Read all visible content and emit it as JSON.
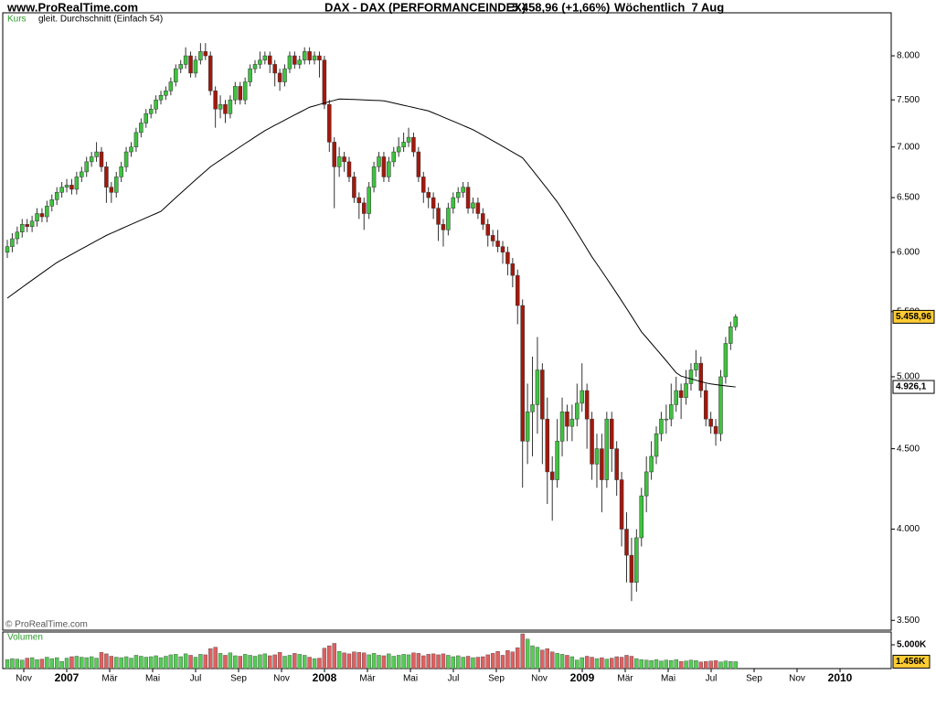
{
  "chart_data": {
    "type": "candlestick",
    "site": "www.ProRealTime.com",
    "title": "DAX - DAX (PERFORMANCEINDEX)",
    "quote": "5.458,96 (+1,66%)",
    "period": "Wöchentlich  7 Aug",
    "legend_label": "Kurs",
    "copyright": "© ProRealTime.com",
    "log_scale": true,
    "up_color": "#3fc23f",
    "down_color": "#a3180c",
    "ylim": [
      3450,
      8520
    ],
    "yticks": [
      {
        "value": 3500,
        "label": "3.500"
      },
      {
        "value": 4000,
        "label": "4.000"
      },
      {
        "value": 4500,
        "label": "4.500"
      },
      {
        "value": 5000,
        "label": "5.000"
      },
      {
        "value": 5500,
        "label": "5.500"
      },
      {
        "value": 6000,
        "label": "6.000"
      },
      {
        "value": 6500,
        "label": "6.500"
      },
      {
        "value": 7000,
        "label": "7.000"
      },
      {
        "value": 7500,
        "label": "7.500"
      },
      {
        "value": 8000,
        "label": "8.000"
      }
    ],
    "xticks": [
      "Nov",
      "2007",
      "Mär",
      "Mai",
      "Jul",
      "Sep",
      "Nov",
      "2008",
      "Mär",
      "Mai",
      "Jul",
      "Sep",
      "Nov",
      "2009",
      "Mär",
      "Mai",
      "Jul",
      "Sep",
      "Nov",
      "2010"
    ],
    "open": [
      6000,
      6050,
      6120,
      6180,
      6250,
      6230,
      6280,
      6350,
      6320,
      6420,
      6480,
      6550,
      6600,
      6620,
      6580,
      6700,
      6750,
      6850,
      6900,
      6950,
      6800,
      6600,
      6550,
      6700,
      6800,
      6950,
      7000,
      7150,
      7250,
      7350,
      7400,
      7500,
      7550,
      7600,
      7700,
      7850,
      7900,
      8000,
      7800,
      7950,
      8050,
      8000,
      7600,
      7400,
      7450,
      7350,
      7500,
      7650,
      7500,
      7700,
      7850,
      7900,
      7950,
      8000,
      7900,
      7800,
      7700,
      7850,
      8000,
      7900,
      7950,
      8050,
      7950,
      8000,
      7950,
      7450,
      7050,
      6800,
      6900,
      6850,
      6700,
      6500,
      6450,
      6350,
      6600,
      6800,
      6900,
      6700,
      6850,
      6950,
      7000,
      7050,
      7100,
      6950,
      6700,
      6550,
      6500,
      6400,
      6250,
      6200,
      6400,
      6500,
      6550,
      6600,
      6400,
      6450,
      6350,
      6250,
      6150,
      6100,
      6050,
      6000,
      5900,
      5800,
      5550,
      4550,
      4750,
      4800,
      5050,
      4700,
      4350,
      4300,
      4550,
      4750,
      4650,
      4700,
      4810,
      4900,
      4700,
      4400,
      4500,
      4300,
      4700,
      4500,
      4300,
      4000,
      3850,
      3700,
      3950,
      4200,
      4350,
      4450,
      4600,
      4700,
      4700,
      4800,
      4900,
      4850,
      4950,
      5050,
      5100,
      4900,
      4700,
      4650,
      4600,
      5000,
      5250,
      5380
    ],
    "high": [
      6110,
      6170,
      6230,
      6300,
      6300,
      6330,
      6400,
      6400,
      6470,
      6530,
      6600,
      6650,
      6680,
      6680,
      6750,
      6800,
      6900,
      6950,
      7050,
      7000,
      6850,
      6650,
      6750,
      6850,
      7000,
      7050,
      7200,
      7300,
      7400,
      7450,
      7550,
      7600,
      7650,
      7750,
      7900,
      7950,
      8100,
      8050,
      8000,
      8150,
      8150,
      8050,
      7650,
      7550,
      7500,
      7550,
      7700,
      7700,
      7750,
      7900,
      7950,
      8050,
      8050,
      8050,
      7950,
      7850,
      7900,
      8050,
      8050,
      8000,
      8100,
      8100,
      8050,
      8050,
      8000,
      7500,
      7100,
      7000,
      6950,
      6900,
      6750,
      6550,
      6500,
      6650,
      6850,
      6950,
      6950,
      6900,
      7000,
      7100,
      7150,
      7200,
      7150,
      7000,
      6750,
      6600,
      6550,
      6450,
      6300,
      6450,
      6550,
      6600,
      6650,
      6650,
      6500,
      6500,
      6400,
      6300,
      6200,
      6200,
      6100,
      6050,
      5950,
      5850,
      5600,
      4950,
      5150,
      5300,
      5100,
      4850,
      4450,
      4700,
      4850,
      4800,
      4800,
      4950,
      5100,
      4950,
      4750,
      4600,
      4600,
      4750,
      4750,
      4550,
      4350,
      4100,
      3950,
      4000,
      4250,
      4450,
      4550,
      4650,
      4750,
      4800,
      4950,
      5000,
      4950,
      5050,
      5100,
      5200,
      5150,
      4950,
      4750,
      4700,
      5050,
      5300,
      5420,
      5480
    ],
    "low": [
      5950,
      6000,
      6070,
      6130,
      6180,
      6180,
      6230,
      6270,
      6270,
      6370,
      6430,
      6500,
      6550,
      6530,
      6530,
      6650,
      6700,
      6800,
      6850,
      6750,
      6450,
      6450,
      6500,
      6650,
      6750,
      6900,
      6950,
      7100,
      7200,
      7300,
      7350,
      7450,
      7500,
      7550,
      7650,
      7800,
      7850,
      7750,
      7750,
      7900,
      7950,
      7550,
      7200,
      7300,
      7250,
      7300,
      7450,
      7450,
      7450,
      7650,
      7800,
      7850,
      7900,
      7800,
      7650,
      7600,
      7650,
      7800,
      7850,
      7850,
      7900,
      7900,
      7900,
      7750,
      7400,
      6950,
      6400,
      6700,
      6750,
      6650,
      6450,
      6300,
      6200,
      6300,
      6550,
      6750,
      6650,
      6650,
      6800,
      6900,
      6950,
      7000,
      6900,
      6650,
      6450,
      6400,
      6300,
      6100,
      6050,
      6150,
      6350,
      6450,
      6500,
      6350,
      6350,
      6300,
      6200,
      6050,
      6050,
      6000,
      5900,
      5800,
      5700,
      5400,
      4250,
      4400,
      4450,
      4600,
      4400,
      4150,
      4050,
      4250,
      4450,
      4550,
      4550,
      4650,
      4750,
      4500,
      4300,
      4250,
      4100,
      4250,
      4350,
      4200,
      3900,
      3700,
      3600,
      3650,
      3900,
      4100,
      4300,
      4400,
      4550,
      4600,
      4650,
      4750,
      4700,
      4800,
      4900,
      5000,
      4850,
      4650,
      4600,
      4520,
      4550,
      4950,
      5200,
      5350
    ],
    "close": [
      6050,
      6120,
      6180,
      6250,
      6230,
      6280,
      6350,
      6320,
      6420,
      6480,
      6550,
      6600,
      6620,
      6580,
      6700,
      6750,
      6850,
      6900,
      6950,
      6800,
      6600,
      6550,
      6700,
      6800,
      6950,
      7000,
      7150,
      7250,
      7350,
      7400,
      7500,
      7550,
      7600,
      7700,
      7850,
      7900,
      8000,
      7800,
      7950,
      8050,
      8000,
      7600,
      7400,
      7450,
      7350,
      7500,
      7650,
      7500,
      7700,
      7850,
      7900,
      7950,
      8000,
      7900,
      7800,
      7700,
      7850,
      8000,
      7900,
      7950,
      8050,
      7950,
      8000,
      7950,
      7450,
      7050,
      6800,
      6900,
      6850,
      6700,
      6500,
      6450,
      6350,
      6600,
      6800,
      6900,
      6700,
      6850,
      6950,
      7000,
      7050,
      7100,
      6950,
      6700,
      6550,
      6500,
      6400,
      6250,
      6200,
      6400,
      6500,
      6550,
      6600,
      6400,
      6450,
      6350,
      6250,
      6150,
      6100,
      6050,
      6000,
      5900,
      5800,
      5550,
      4550,
      4750,
      4800,
      5050,
      4700,
      4350,
      4300,
      4550,
      4750,
      4650,
      4700,
      4810,
      4900,
      4700,
      4400,
      4500,
      4300,
      4700,
      4500,
      4300,
      4000,
      3850,
      3700,
      3950,
      4200,
      4350,
      4450,
      4600,
      4700,
      4700,
      4800,
      4900,
      4850,
      4950,
      5050,
      5100,
      4900,
      4700,
      4650,
      4600,
      5000,
      5250,
      5380,
      5458.96
    ],
    "ma": {
      "name": "gleit. Durchschnitt (Einfach 54)",
      "color": "#000000",
      "values": [
        5610,
        5640,
        5670,
        5700,
        5730,
        5760,
        5790,
        5820,
        5850,
        5880,
        5910,
        5934,
        5958,
        5982,
        6006,
        6030,
        6054,
        6078,
        6102,
        6126,
        6150,
        6170,
        6190,
        6210,
        6230,
        6250,
        6270,
        6290,
        6310,
        6330,
        6350,
        6370,
        6413,
        6456,
        6499,
        6542,
        6585,
        6628,
        6671,
        6714,
        6757,
        6800,
        6834,
        6867,
        6901,
        6935,
        6968,
        7002,
        7036,
        7069,
        7103,
        7136,
        7170,
        7198,
        7226,
        7253,
        7281,
        7309,
        7337,
        7364,
        7392,
        7420,
        7435,
        7450,
        7465,
        7480,
        7495,
        7510,
        7508,
        7506,
        7504,
        7502,
        7500,
        7497,
        7495,
        7493,
        7490,
        7478,
        7466,
        7453,
        7441,
        7429,
        7417,
        7404,
        7392,
        7380,
        7358,
        7336,
        7313,
        7291,
        7269,
        7247,
        7224,
        7202,
        7180,
        7151,
        7122,
        7093,
        7064,
        7035,
        7006,
        6977,
        6948,
        6919,
        6890,
        6829,
        6767,
        6706,
        6644,
        6583,
        6521,
        6460,
        6389,
        6317,
        6246,
        6174,
        6103,
        6031,
        5960,
        5898,
        5836,
        5774,
        5712,
        5650,
        5588,
        5526,
        5464,
        5402,
        5340,
        5296,
        5251,
        5207,
        5163,
        5119,
        5074,
        5030,
        5005,
        4995,
        4985,
        4975,
        4965,
        4955,
        4948,
        4943,
        4938,
        4934,
        4930,
        4926.1
      ]
    },
    "markers": [
      {
        "value": 5458.96,
        "label": "5.458,96",
        "color": "#ffcc33"
      },
      {
        "value": 4926.1,
        "label": "4.926,1",
        "color": "#ffffff"
      }
    ],
    "volume": {
      "name": "Volumen",
      "color_up": "#55cc55",
      "color_down": "#e06060",
      "ylim": [
        0,
        7500
      ],
      "yticks": [
        {
          "value": 5000,
          "label": "5.000K"
        }
      ],
      "marker": {
        "value": 1456,
        "label": "1.456K",
        "color": "#ffcc33"
      },
      "values": [
        1900,
        2100,
        2000,
        1800,
        2200,
        2300,
        1900,
        2000,
        2400,
        2100,
        2300,
        1500,
        2200,
        2500,
        2600,
        2400,
        2300,
        2500,
        2200,
        3400,
        3100,
        2600,
        2400,
        2300,
        2500,
        2200,
        2800,
        2600,
        2400,
        2500,
        2700,
        2300,
        2600,
        2900,
        3000,
        2500,
        3100,
        2800,
        2400,
        3000,
        2900,
        4200,
        4500,
        3200,
        2800,
        3300,
        2700,
        2600,
        3000,
        2800,
        2600,
        2900,
        3100,
        2700,
        2900,
        3400,
        2600,
        2800,
        3200,
        3000,
        2800,
        2400,
        2100,
        2200,
        4300,
        4800,
        5300,
        3600,
        3300,
        3100,
        3500,
        3400,
        3300,
        2900,
        3200,
        2800,
        2700,
        3100,
        2600,
        2800,
        3000,
        2900,
        3300,
        3200,
        2700,
        3000,
        3100,
        2900,
        3100,
        2800,
        2500,
        2700,
        2400,
        2600,
        2300,
        2400,
        2500,
        2900,
        3200,
        3600,
        2800,
        3800,
        3500,
        4400,
        7300,
        6200,
        4800,
        4500,
        3900,
        4200,
        3500,
        3200,
        3000,
        2800,
        2500,
        1800,
        2300,
        2600,
        2400,
        2100,
        2300,
        2000,
        2200,
        2500,
        2400,
        2800,
        2600,
        2100,
        1900,
        1800,
        1700,
        1900,
        1600,
        1800,
        1700,
        1900,
        1500,
        1600,
        1800,
        1700,
        1400,
        1500,
        1600,
        1700,
        1400,
        1600,
        1500,
        1456
      ]
    }
  }
}
